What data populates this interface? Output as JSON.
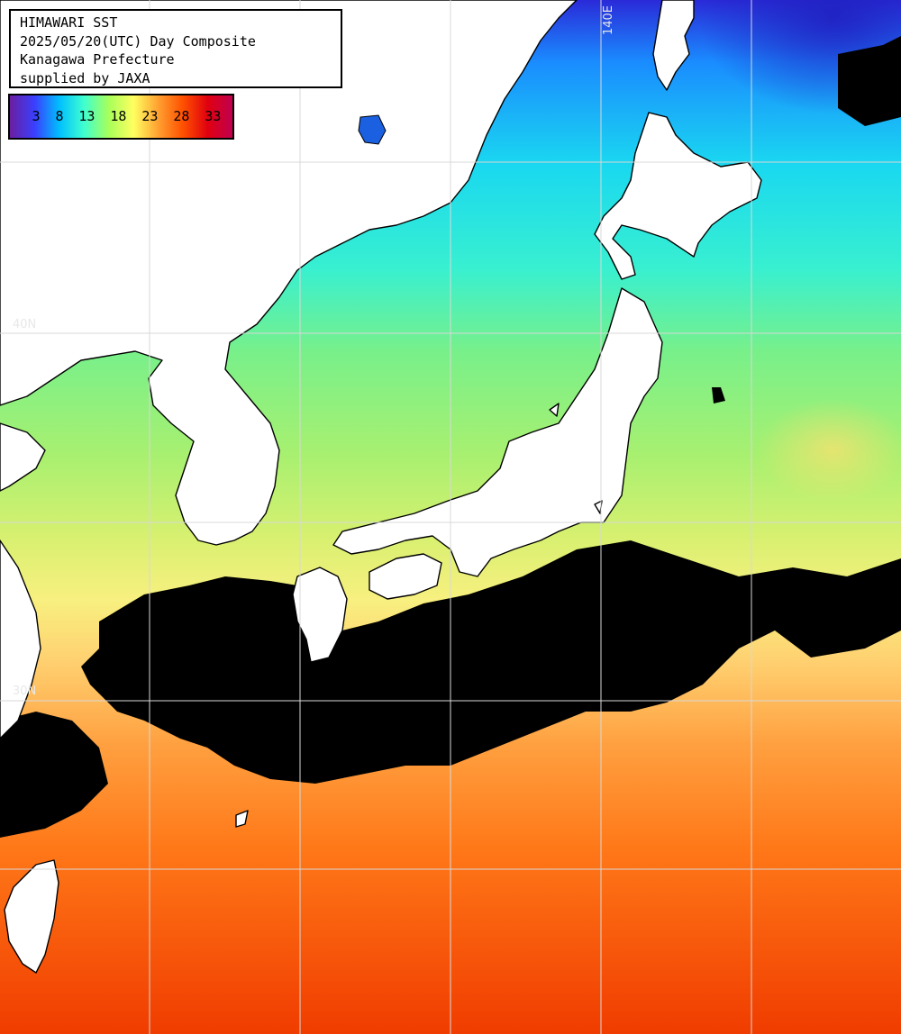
{
  "title_lines": [
    "HIMAWARI SST",
    "2025/05/20(UTC) Day Composite",
    "Kanagawa Prefecture",
    "supplied by JAXA"
  ],
  "colorbar": {
    "ticks": [
      "3",
      "8",
      "13",
      "18",
      "23",
      "28",
      "33"
    ],
    "colors": [
      "#6a1fa0",
      "#3a3fff",
      "#00bfff",
      "#3fffd0",
      "#a8ff5a",
      "#ffff60",
      "#ffa030",
      "#ff5000",
      "#e00010",
      "#c00050"
    ]
  },
  "grid_labels": {
    "lon_140": "140E",
    "lat_40": "40N",
    "lat_30": "30N"
  },
  "colors": {
    "land": "#ffffff",
    "cloud": "#000000",
    "coast": "#000000",
    "grid": "#d8d8d8"
  }
}
